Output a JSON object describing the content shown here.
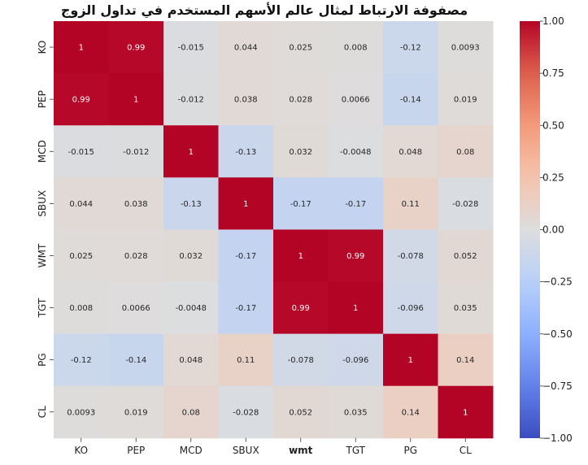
{
  "chart_data": {
    "type": "heatmap",
    "title": "مصفوفة الارتباط لمثال عالم الأسهم المستخدم في تداول الزوج",
    "rows": [
      "KO",
      "PEP",
      "MCD",
      "SBUX",
      "WMT",
      "TGT",
      "PG",
      "CL"
    ],
    "columns": [
      "KO",
      "PEP",
      "MCD",
      "SBUX",
      "wmt",
      "TGT",
      "PG",
      "CL"
    ],
    "bold_columns": [
      "wmt"
    ],
    "values": [
      [
        1,
        0.99,
        -0.015,
        0.044,
        0.025,
        0.008,
        -0.12,
        0.0093
      ],
      [
        0.99,
        1,
        -0.012,
        0.038,
        0.028,
        0.0066,
        -0.14,
        0.019
      ],
      [
        -0.015,
        -0.012,
        1,
        -0.13,
        0.032,
        -0.0048,
        0.048,
        0.08
      ],
      [
        0.044,
        0.038,
        -0.13,
        1,
        -0.17,
        -0.17,
        0.11,
        -0.028
      ],
      [
        0.025,
        0.028,
        0.032,
        -0.17,
        1,
        0.99,
        -0.078,
        0.052
      ],
      [
        0.008,
        0.0066,
        -0.0048,
        -0.17,
        0.99,
        1,
        -0.096,
        0.035
      ],
      [
        -0.12,
        -0.14,
        0.048,
        0.11,
        -0.078,
        -0.096,
        1,
        0.14
      ],
      [
        0.0093,
        0.019,
        0.08,
        -0.028,
        0.052,
        0.035,
        0.14,
        1
      ]
    ],
    "annotations": [
      [
        "1",
        "0.99",
        "-0.015",
        "0.044",
        "0.025",
        "0.008",
        "-0.12",
        "0.0093"
      ],
      [
        "0.99",
        "1",
        "-0.012",
        "0.038",
        "0.028",
        "0.0066",
        "-0.14",
        "0.019"
      ],
      [
        "-0.015",
        "-0.012",
        "1",
        "-0.13",
        "0.032",
        "-0.0048",
        "0.048",
        "0.08"
      ],
      [
        "0.044",
        "0.038",
        "-0.13",
        "1",
        "-0.17",
        "-0.17",
        "0.11",
        "-0.028"
      ],
      [
        "0.025",
        "0.028",
        "0.032",
        "-0.17",
        "1",
        "0.99",
        "-0.078",
        "0.052"
      ],
      [
        "0.008",
        "0.0066",
        "-0.0048",
        "-0.17",
        "0.99",
        "1",
        "-0.096",
        "0.035"
      ],
      [
        "-0.12",
        "-0.14",
        "0.048",
        "0.11",
        "-0.078",
        "-0.096",
        "1",
        "0.14"
      ],
      [
        "0.0093",
        "0.019",
        "0.08",
        "-0.028",
        "0.052",
        "0.035",
        "0.14",
        "1"
      ]
    ],
    "colormap": "coolwarm",
    "vmin": -1.0,
    "vmax": 1.0,
    "colorbar": {
      "ticks": [
        1.0,
        0.75,
        0.5,
        0.25,
        0.0,
        -0.25,
        -0.5,
        -0.75,
        -1.0
      ],
      "tick_labels": [
        "1.00",
        "0.75",
        "0.50",
        "0.25",
        "0.00",
        "−0.25",
        "−0.50",
        "−0.75",
        "−1.00"
      ],
      "placement": "right"
    },
    "colors": {
      "high": "#b40426",
      "mid": "#dddddd",
      "low": "#3b4cc0"
    }
  }
}
